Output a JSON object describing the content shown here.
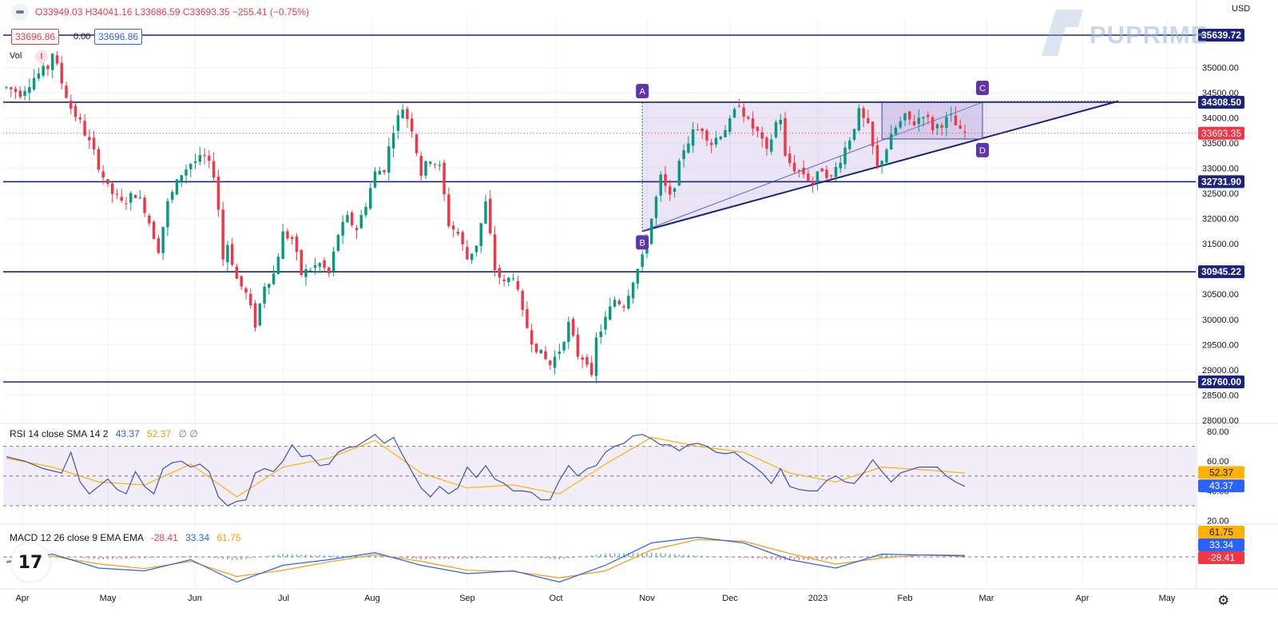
{
  "header": {
    "ohlc_text": "O33949.03 H34041.16 L33686.59 C33693.35 −255.41 (−0.75%)",
    "currency": "USD",
    "price_box_red": "33696.86",
    "price_box_zero": "0.00",
    "price_box_blue": "33696.86",
    "volume_label": "Vol",
    "volume_warning": "!"
  },
  "watermark": {
    "text": "PUPRIME"
  },
  "colors": {
    "up": "#089981",
    "down": "#f23645",
    "level_line": "#1a237e",
    "pattern_fill": "#b39ddb",
    "pattern_stroke": "#3f51b5",
    "rsi_line": "#3f51b5",
    "rsi_sma": "#ffb300",
    "macd_line": "#2962ff",
    "signal_line": "#ff9800",
    "label_badge": "#5e35b1",
    "current_price": "#f23645"
  },
  "chart_data": [
    {
      "type": "candlestick",
      "x_axis_labels": [
        "Apr",
        "May",
        "Jun",
        "Jul",
        "Aug",
        "Sep",
        "Oct",
        "Nov",
        "Dec",
        "2023",
        "Feb",
        "Mar",
        "Apr",
        "May"
      ],
      "y_axis": {
        "range": [
          28000,
          35700
        ],
        "ticks": [
          "35000.00",
          "34500.00",
          "34000.00",
          "33500.00",
          "33000.00",
          "32500.00",
          "32000.00",
          "31500.00",
          "31000.00",
          "30500.00",
          "30000.00",
          "29500.00",
          "29000.00",
          "28500.00",
          "28000.00"
        ]
      },
      "horizontal_levels": [
        "35639.72",
        "34308.50",
        "32731.90",
        "30945.22",
        "28760.00"
      ],
      "current_price": "33693.35",
      "ohlc": {
        "open": 33949.03,
        "high": 34041.16,
        "low": 33686.59,
        "close": 33693.35,
        "change": -255.41,
        "change_pct": -0.75
      },
      "pattern_points": [
        "A",
        "B",
        "C",
        "D"
      ],
      "trend_path": [
        [
          0,
          34600
        ],
        [
          3,
          34500
        ],
        [
          6,
          34800
        ],
        [
          9,
          35000
        ],
        [
          10,
          35300
        ],
        [
          12,
          34700
        ],
        [
          14,
          34200
        ],
        [
          16,
          33900
        ],
        [
          19,
          33300
        ],
        [
          22,
          32600
        ],
        [
          25,
          32300
        ],
        [
          28,
          32500
        ],
        [
          30,
          32200
        ],
        [
          33,
          31400
        ],
        [
          35,
          32300
        ],
        [
          36,
          32500
        ],
        [
          38,
          32900
        ],
        [
          40,
          33100
        ],
        [
          43,
          33200
        ],
        [
          45,
          32900
        ],
        [
          46,
          32200
        ],
        [
          47,
          31200
        ],
        [
          48,
          31500
        ],
        [
          50,
          30800
        ],
        [
          52,
          30500
        ],
        [
          54,
          29900
        ],
        [
          56,
          30700
        ],
        [
          58,
          30900
        ],
        [
          60,
          31700
        ],
        [
          62,
          31600
        ],
        [
          64,
          30900
        ],
        [
          66,
          31000
        ],
        [
          68,
          31100
        ],
        [
          70,
          30900
        ],
        [
          72,
          31700
        ],
        [
          74,
          32000
        ],
        [
          76,
          31800
        ],
        [
          78,
          32300
        ],
        [
          80,
          32900
        ],
        [
          82,
          33000
        ],
        [
          84,
          33800
        ],
        [
          86,
          34200
        ],
        [
          88,
          33800
        ],
        [
          90,
          32900
        ],
        [
          92,
          33200
        ],
        [
          94,
          33000
        ],
        [
          96,
          31900
        ],
        [
          98,
          31700
        ],
        [
          100,
          31200
        ],
        [
          102,
          31500
        ],
        [
          104,
          32300
        ],
        [
          106,
          31000
        ],
        [
          108,
          30700
        ],
        [
          110,
          30900
        ],
        [
          112,
          30100
        ],
        [
          114,
          29600
        ],
        [
          116,
          29300
        ],
        [
          118,
          29100
        ],
        [
          120,
          29400
        ],
        [
          122,
          29900
        ],
        [
          124,
          29300
        ],
        [
          126,
          29200
        ],
        [
          127,
          28800
        ],
        [
          128,
          29600
        ],
        [
          130,
          30000
        ],
        [
          132,
          30400
        ],
        [
          134,
          30300
        ],
        [
          136,
          30800
        ],
        [
          138,
          31200
        ],
        [
          140,
          32000
        ],
        [
          142,
          32800
        ],
        [
          144,
          32400
        ],
        [
          145,
          32700
        ],
        [
          147,
          33400
        ],
        [
          149,
          33700
        ],
        [
          151,
          33800
        ],
        [
          153,
          33500
        ],
        [
          155,
          33700
        ],
        [
          157,
          33900
        ],
        [
          159,
          34300
        ],
        [
          161,
          33900
        ],
        [
          163,
          33700
        ],
        [
          165,
          33300
        ],
        [
          167,
          33900
        ],
        [
          168,
          34000
        ],
        [
          169,
          33200
        ],
        [
          171,
          33000
        ],
        [
          173,
          32900
        ],
        [
          175,
          32700
        ],
        [
          177,
          33000
        ],
        [
          179,
          32800
        ],
        [
          181,
          33200
        ],
        [
          183,
          33600
        ],
        [
          185,
          34100
        ],
        [
          187,
          33800
        ],
        [
          189,
          33000
        ],
        [
          191,
          33400
        ],
        [
          193,
          33800
        ],
        [
          195,
          34000
        ],
        [
          197,
          33900
        ],
        [
          199,
          34100
        ],
        [
          201,
          33800
        ],
        [
          203,
          33900
        ],
        [
          205,
          34000
        ],
        [
          207,
          33700
        ],
        [
          208,
          33690
        ]
      ],
      "total_bars": 208
    },
    {
      "type": "line",
      "name": "RSI 14 close SMA 14 2",
      "legend": [
        "RSI 14 close SMA 14 2",
        "43.37",
        "52.37",
        "∅ ∅"
      ],
      "y_ticks": [
        "80.00",
        "60.00",
        "40.00",
        "20.00"
      ],
      "bands": [
        30,
        70
      ],
      "mid": 50,
      "last_values": {
        "rsi": "43.37",
        "sma": "52.37"
      },
      "rsi": [
        [
          0,
          63
        ],
        [
          4,
          60
        ],
        [
          8,
          55
        ],
        [
          12,
          52
        ],
        [
          14,
          66
        ],
        [
          16,
          46
        ],
        [
          18,
          38
        ],
        [
          22,
          48
        ],
        [
          24,
          41
        ],
        [
          26,
          38
        ],
        [
          28,
          53
        ],
        [
          30,
          43
        ],
        [
          32,
          38
        ],
        [
          34,
          55
        ],
        [
          36,
          59
        ],
        [
          38,
          60
        ],
        [
          40,
          56
        ],
        [
          42,
          58
        ],
        [
          44,
          53
        ],
        [
          46,
          36
        ],
        [
          48,
          30
        ],
        [
          50,
          33
        ],
        [
          52,
          34
        ],
        [
          54,
          52
        ],
        [
          56,
          55
        ],
        [
          58,
          53
        ],
        [
          60,
          60
        ],
        [
          62,
          71
        ],
        [
          64,
          63
        ],
        [
          66,
          64
        ],
        [
          68,
          57
        ],
        [
          70,
          58
        ],
        [
          72,
          66
        ],
        [
          74,
          69
        ],
        [
          76,
          70
        ],
        [
          78,
          74
        ],
        [
          80,
          78
        ],
        [
          82,
          72
        ],
        [
          84,
          76
        ],
        [
          86,
          64
        ],
        [
          88,
          53
        ],
        [
          90,
          42
        ],
        [
          92,
          36
        ],
        [
          94,
          43
        ],
        [
          96,
          38
        ],
        [
          98,
          42
        ],
        [
          100,
          56
        ],
        [
          102,
          49
        ],
        [
          104,
          57
        ],
        [
          106,
          48
        ],
        [
          108,
          45
        ],
        [
          110,
          40
        ],
        [
          112,
          40
        ],
        [
          114,
          39
        ],
        [
          116,
          34
        ],
        [
          118,
          34
        ],
        [
          120,
          47
        ],
        [
          122,
          57
        ],
        [
          124,
          50
        ],
        [
          126,
          55
        ],
        [
          128,
          57
        ],
        [
          130,
          66
        ],
        [
          132,
          70
        ],
        [
          134,
          72
        ],
        [
          136,
          77
        ],
        [
          138,
          78
        ],
        [
          140,
          75
        ],
        [
          142,
          71
        ],
        [
          144,
          71
        ],
        [
          146,
          67
        ],
        [
          148,
          71
        ],
        [
          150,
          72
        ],
        [
          152,
          70
        ],
        [
          154,
          66
        ],
        [
          156,
          65
        ],
        [
          158,
          66
        ],
        [
          160,
          61
        ],
        [
          162,
          57
        ],
        [
          164,
          52
        ],
        [
          166,
          45
        ],
        [
          168,
          55
        ],
        [
          170,
          43
        ],
        [
          172,
          41
        ],
        [
          174,
          40
        ],
        [
          176,
          40
        ],
        [
          178,
          47
        ],
        [
          180,
          50
        ],
        [
          182,
          46
        ],
        [
          184,
          45
        ],
        [
          186,
          52
        ],
        [
          188,
          61
        ],
        [
          190,
          53
        ],
        [
          192,
          46
        ],
        [
          194,
          52
        ],
        [
          196,
          54
        ],
        [
          198,
          56
        ],
        [
          200,
          56
        ],
        [
          202,
          56
        ],
        [
          204,
          50
        ],
        [
          206,
          46
        ],
        [
          208,
          43
        ]
      ],
      "sma": [
        [
          0,
          62
        ],
        [
          10,
          56
        ],
        [
          20,
          46
        ],
        [
          30,
          44
        ],
        [
          40,
          58
        ],
        [
          50,
          36
        ],
        [
          60,
          56
        ],
        [
          70,
          62
        ],
        [
          80,
          74
        ],
        [
          90,
          52
        ],
        [
          100,
          42
        ],
        [
          110,
          44
        ],
        [
          120,
          38
        ],
        [
          130,
          58
        ],
        [
          140,
          76
        ],
        [
          150,
          70
        ],
        [
          160,
          66
        ],
        [
          170,
          52
        ],
        [
          180,
          46
        ],
        [
          190,
          56
        ],
        [
          200,
          54
        ],
        [
          208,
          52
        ]
      ]
    },
    {
      "type": "line",
      "name": "MACD 12 26 close 9 EMA EMA",
      "legend": [
        "MACD 12 26 close 9 EMA EMA",
        "-28.41",
        "33.34",
        "61.75"
      ],
      "last_values": {
        "histogram": "-28.41",
        "macd": "33.34",
        "signal": "61.75"
      },
      "macd": [
        [
          0,
          -200
        ],
        [
          10,
          100
        ],
        [
          20,
          -400
        ],
        [
          30,
          -500
        ],
        [
          40,
          -100
        ],
        [
          50,
          -900
        ],
        [
          60,
          -300
        ],
        [
          70,
          -100
        ],
        [
          80,
          150
        ],
        [
          90,
          -300
        ],
        [
          100,
          -600
        ],
        [
          110,
          -500
        ],
        [
          120,
          -900
        ],
        [
          130,
          -300
        ],
        [
          140,
          500
        ],
        [
          150,
          700
        ],
        [
          160,
          500
        ],
        [
          170,
          -100
        ],
        [
          180,
          -400
        ],
        [
          190,
          100
        ],
        [
          200,
          60
        ],
        [
          208,
          33
        ]
      ],
      "signal": [
        [
          0,
          -150
        ],
        [
          10,
          20
        ],
        [
          20,
          -250
        ],
        [
          30,
          -420
        ],
        [
          40,
          -160
        ],
        [
          50,
          -700
        ],
        [
          60,
          -480
        ],
        [
          70,
          -180
        ],
        [
          80,
          80
        ],
        [
          90,
          -160
        ],
        [
          100,
          -480
        ],
        [
          110,
          -520
        ],
        [
          120,
          -750
        ],
        [
          130,
          -500
        ],
        [
          140,
          250
        ],
        [
          150,
          620
        ],
        [
          160,
          560
        ],
        [
          170,
          120
        ],
        [
          180,
          -260
        ],
        [
          190,
          -40
        ],
        [
          200,
          80
        ],
        [
          208,
          62
        ]
      ]
    }
  ]
}
